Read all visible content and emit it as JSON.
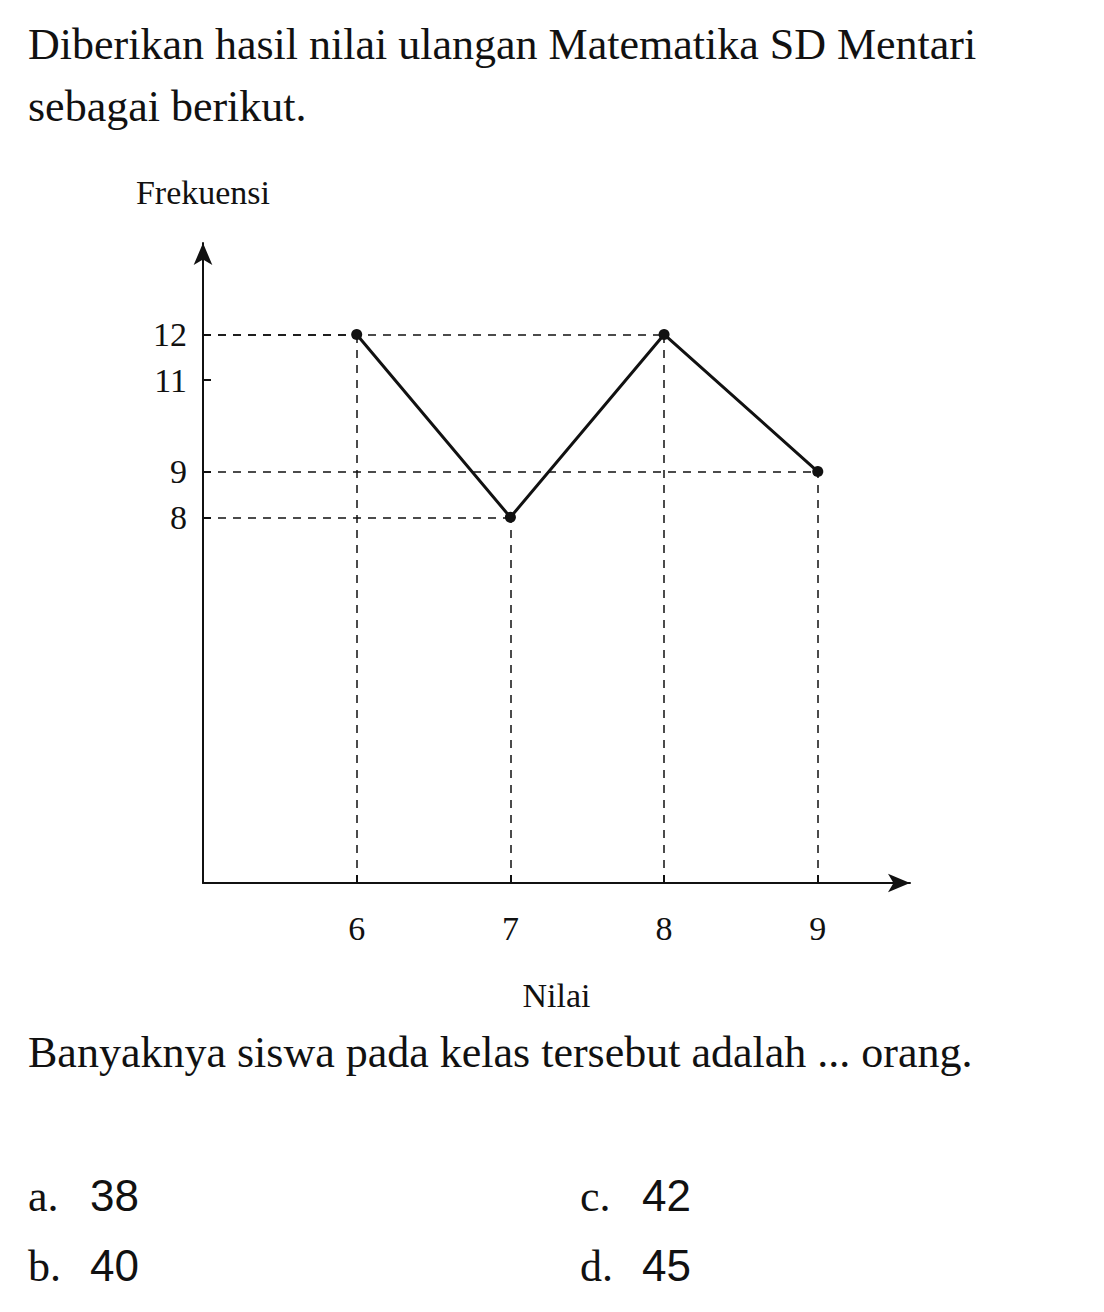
{
  "intro": "Diberikan hasil nilai ulangan Matematika SD Mentari sebagai berikut.",
  "chart_data": {
    "type": "line",
    "x_label": "Nilai",
    "y_label": "Frekuensi",
    "x": [
      6,
      7,
      8,
      9
    ],
    "values": [
      12,
      8,
      12,
      9
    ],
    "xlim": [
      5,
      9.6
    ],
    "xticks": [
      6,
      7,
      8,
      9
    ],
    "ylim": [
      0,
      14
    ],
    "yticks": [
      8,
      9,
      11,
      12
    ],
    "color": "#111111",
    "marker": "circle",
    "grid": false
  },
  "question": "Banyaknya siswa pada kelas tersebut adalah ... orang.",
  "choices": [
    {
      "letter": "a.",
      "text": "38"
    },
    {
      "letter": "b.",
      "text": "40"
    },
    {
      "letter": "c.",
      "text": "42"
    },
    {
      "letter": "d.",
      "text": "45"
    }
  ]
}
